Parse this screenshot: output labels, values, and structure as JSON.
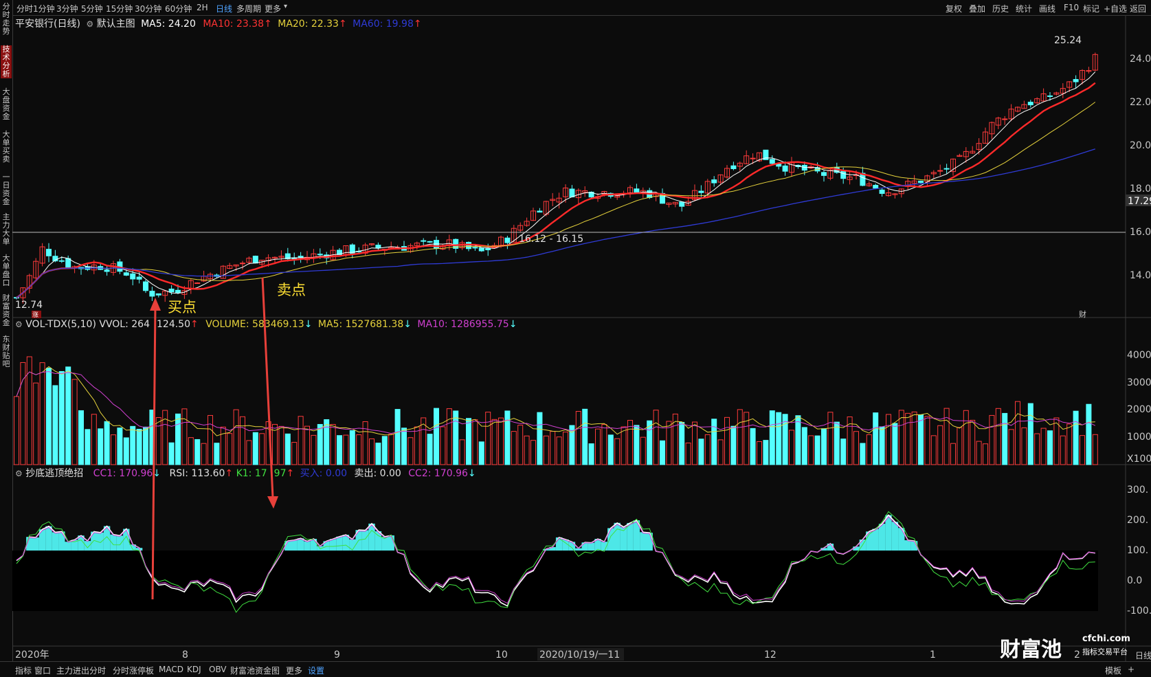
{
  "toolbar": {
    "timeframes": [
      "分时",
      "1分钟",
      "3分钟",
      "5分钟",
      "15分钟",
      "30分钟",
      "60分钟",
      "2H",
      "日线",
      "多周期",
      "更多"
    ],
    "active_timeframe": "日线",
    "right_buttons": [
      "复权",
      "叠加",
      "历史",
      "统计",
      "画线",
      "F10",
      "标记",
      "+自选",
      "返回"
    ]
  },
  "sidebar": {
    "tabs": [
      "分时走势",
      "技术分析",
      "大盘资金",
      "大单买卖",
      "一日资金",
      "主力大单",
      "大单盘口",
      "财富资金",
      "东财贴吧"
    ],
    "active_tab": "技术分析"
  },
  "main_panel": {
    "stock_title": "平安银行(日线)",
    "template_name": "默认主图",
    "ma5": "MA5: 24.20",
    "ma10": "MA10: 23.38",
    "ma20": "MA20: 22.33",
    "ma60": "MA60: 19.98",
    "high_label": "25.24",
    "low_label": "12.74",
    "range_label": "16.12 - 16.15",
    "price_marker": "17.29",
    "price_ticks": [
      "24.00",
      "22.00",
      "20.00",
      "18.00",
      "16.00",
      "14.00"
    ],
    "buy_annotation": "买点",
    "sell_annotation": "卖点",
    "small_badge_left": "涨",
    "small_badge_right": "财"
  },
  "volume_panel": {
    "indicator": "VOL-TDX(5,10)",
    "vvol": "VVOL: 264",
    "vvol_tail": "124.50",
    "volume": "VOLUME: 583469.13",
    "ma5": "MA5: 1527681.38",
    "ma10": "MA10: 1286955.75",
    "ticks": [
      "4000",
      "3000",
      "2000",
      "1000",
      "X100"
    ]
  },
  "oscillator_panel": {
    "name": "抄底逃顶绝招",
    "cc1": "CC1: 170.96",
    "rsi": "RSI: 113.60",
    "k1": "K1: 17",
    "k1_tail": "97",
    "buy": "买入: 0.00",
    "sell": "卖出: 0.00",
    "cc2": "CC2: 170.96",
    "ticks": [
      "300.",
      "200.",
      "100.",
      "0.0",
      "-100."
    ]
  },
  "xaxis": {
    "labels": [
      "2020年",
      "8",
      "9",
      "10",
      "2020/10/19/一11",
      "12",
      "1",
      "2"
    ]
  },
  "bottom_tabs": {
    "items": [
      "指标",
      "窗口",
      "主力进出分时",
      "分时涨停板",
      "MACD",
      "KDJ",
      "OBV",
      "财富池资金图",
      "更多",
      "设置"
    ],
    "selected": "设置",
    "right_labels": [
      "模板",
      "+",
      "日线"
    ]
  },
  "watermark": {
    "brand": "财富池",
    "domain": "cfchi.com",
    "tagline": "指标交易平台"
  },
  "colors": {
    "up": "#ff3b3b",
    "down": "#54ffff",
    "ma5": "#ffffff",
    "ma10": "#ff2a2a",
    "ma20": "#e6d23c",
    "ma60": "#2f3bd6",
    "annotation": "#ffe033",
    "arrow": "#e8403a"
  }
}
